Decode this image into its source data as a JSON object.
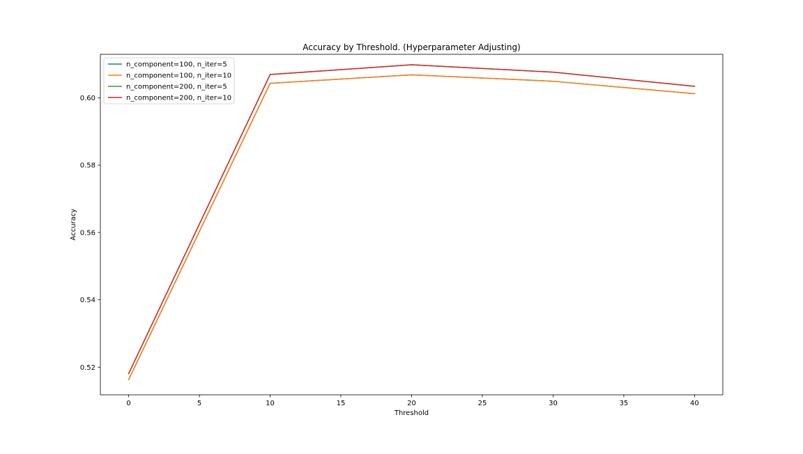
{
  "chart_data": {
    "type": "line",
    "title": "Accuracy by Threshold. (Hyperparameter Adjusting)",
    "xlabel": "Threshold",
    "ylabel": "Accuracy",
    "xlim": [
      -2,
      42
    ],
    "ylim": [
      0.5118,
      0.6129
    ],
    "x_ticks": [
      0,
      5,
      10,
      15,
      20,
      25,
      30,
      35,
      40
    ],
    "y_ticks": [
      0.52,
      0.54,
      0.56,
      0.58,
      0.6
    ],
    "grid": false,
    "legend_position": "top-left",
    "x": [
      0,
      10,
      20,
      30,
      40
    ],
    "series": [
      {
        "name": "n_component=100, n_iter=5",
        "color": "#1f77b4",
        "values": [
          0.5163,
          0.6043,
          0.6068,
          0.6049,
          0.6012
        ]
      },
      {
        "name": "n_component=100, n_iter=10",
        "color": "#ff7f0e",
        "values": [
          0.5163,
          0.6043,
          0.6068,
          0.6049,
          0.6012
        ]
      },
      {
        "name": "n_component=200, n_iter=5",
        "color": "#2ca02c",
        "values": [
          0.5181,
          0.6069,
          0.6098,
          0.6076,
          0.6034
        ]
      },
      {
        "name": "n_component=200, n_iter=10",
        "color": "#d62728",
        "values": [
          0.5181,
          0.6069,
          0.6098,
          0.6076,
          0.6034
        ]
      }
    ]
  }
}
